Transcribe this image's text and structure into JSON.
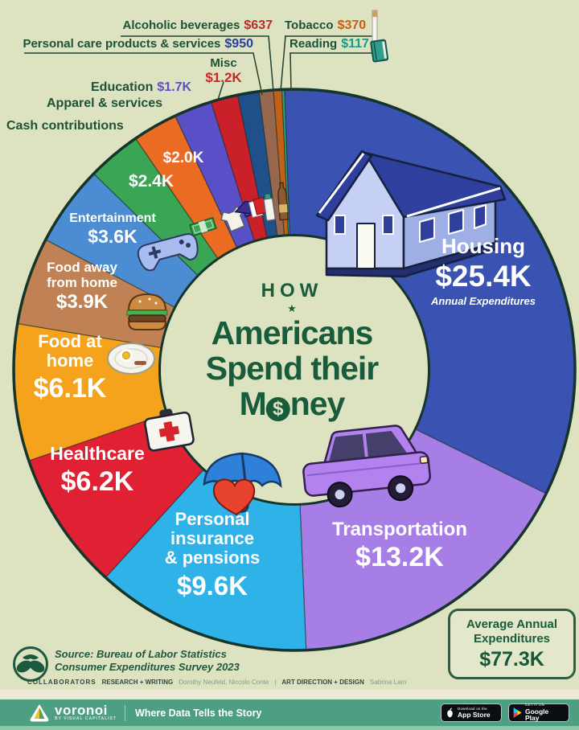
{
  "title": {
    "kicker": "HOW",
    "star": "★",
    "line1": "Americans",
    "line2": "Spend their",
    "money_parts": {
      "pre": "M",
      "coin": "$",
      "post": "ney"
    }
  },
  "chart_data": {
    "type": "pie",
    "title": "How Americans Spend their Money",
    "start_angle_deg": -2,
    "direction": "clockwise",
    "total_usd": 77300,
    "total_display": "$77.3K",
    "source": "Bureau of Labor Statistics Consumer Expenditures Survey 2023",
    "slices": [
      {
        "name": "Housing",
        "value_usd": 25400,
        "display": "$25.4K",
        "note": "Annual Expenditures",
        "color": "#3a52b2",
        "icon": "house-icon"
      },
      {
        "name": "Transportation",
        "value_usd": 13200,
        "display": "$13.2K",
        "color": "#a77ee6",
        "icon": "car-icon"
      },
      {
        "name": "Personal insurance & pensions",
        "name_lines": [
          "Personal",
          "insurance",
          "& pensions"
        ],
        "value_usd": 9600,
        "display": "$9.6K",
        "color": "#2eb2e8",
        "icon": "umbrella-heart-icon"
      },
      {
        "name": "Healthcare",
        "value_usd": 6200,
        "display": "$6.2K",
        "color": "#df2133",
        "icon": "first-aid-kit-icon"
      },
      {
        "name": "Food at home",
        "name_lines": [
          "Food at",
          "home"
        ],
        "value_usd": 6100,
        "display": "$6.1K",
        "color": "#f5a31d",
        "icon": "breakfast-plate-icon"
      },
      {
        "name": "Food away from home",
        "name_lines": [
          "Food away",
          "from home"
        ],
        "value_usd": 3900,
        "display": "$3.9K",
        "color": "#c08254",
        "icon": "burger-icon"
      },
      {
        "name": "Entertainment",
        "value_usd": 3600,
        "display": "$3.6K",
        "color": "#4b8cd2",
        "icon": "game-controller-icon"
      },
      {
        "name": "Cash contributions",
        "value_usd": 2400,
        "display": "$2.4K",
        "color": "#3aa555",
        "icon": "money-bills-icon"
      },
      {
        "name": "Apparel & services",
        "value_usd": 2000,
        "display": "$2.0K",
        "color": "#ea6c22",
        "icon": "tshirt-icon"
      },
      {
        "name": "Education",
        "value_usd": 1700,
        "display": "$1.7K",
        "color": "#594fc6",
        "value_color": "#594fc6",
        "icon": "graduation-cap-icon"
      },
      {
        "name": "Misc",
        "value_usd": 1200,
        "display": "$1.2K",
        "color": "#c9202a",
        "value_color": "#ce242a",
        "icon": "cards-icon"
      },
      {
        "name": "Personal care products & services",
        "value_usd": 950,
        "display": "$950",
        "color": "#205089",
        "value_color": "#2b3f9e",
        "icon": "lotion-icon"
      },
      {
        "name": "Alcoholic beverages",
        "value_usd": 637,
        "display": "$637",
        "color": "#97674f",
        "value_color": "#bf2a2e",
        "icon": "bottle-icon"
      },
      {
        "name": "Tobacco",
        "value_usd": 370,
        "display": "$370",
        "color": "#c26018",
        "value_color": "#cc5d14",
        "icon": "cigarette-icon"
      },
      {
        "name": "Reading",
        "value_usd": 117,
        "display": "$117",
        "color": "#2f9e78",
        "value_color": "#1b9a80",
        "icon": "book-icon"
      }
    ]
  },
  "summary_box": {
    "line1": "Average Annual",
    "line2": "Expenditures",
    "value": "$77.3K"
  },
  "source": {
    "line1": "Source: Bureau of Labor Statistics",
    "line2": "Consumer Expenditures Survey 2023"
  },
  "collaborators": {
    "heading": "COLLABORATORS",
    "research_label": "RESEARCH + WRITING",
    "research_names": "Dorothy Neufeld, Niccolo Conte",
    "separator": "|",
    "design_label": "ART DIRECTION + DESIGN",
    "design_names": "Sabrina Lam"
  },
  "footer": {
    "brand": "voronoi",
    "brand_sub": "BY VISUAL CAPITALIST",
    "tagline": "Where Data Tells the Story",
    "appstore": {
      "line1": "Download on the",
      "line2": "App Store"
    },
    "googleplay": {
      "line1": "GET IT ON",
      "line2": "Google Play"
    }
  },
  "colors": {
    "background": "#dde3c1",
    "title_green": "#185c3c",
    "outline_dark": "#16352a",
    "footer_green": "#4d9f82"
  },
  "icons": [
    "house-icon",
    "car-icon",
    "umbrella-heart-icon",
    "first-aid-kit-icon",
    "breakfast-plate-icon",
    "burger-icon",
    "game-controller-icon",
    "money-bills-icon",
    "tshirt-icon",
    "graduation-cap-icon",
    "cards-icon",
    "lotion-icon",
    "bottle-icon",
    "cigarette-icon",
    "book-icon",
    "apple-icon",
    "play-store-icon",
    "voronoi-logo",
    "source-logo"
  ]
}
